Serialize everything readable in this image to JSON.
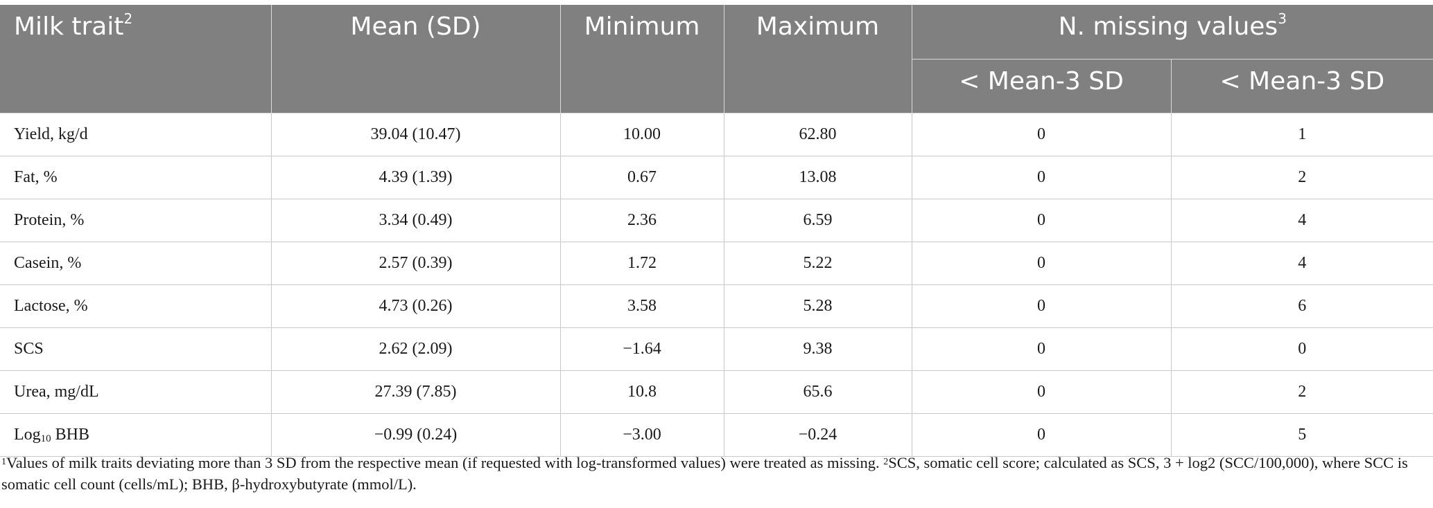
{
  "table": {
    "header": {
      "col1": "Milk trait",
      "col1_sup": "2",
      "col2": "Mean (SD)",
      "col3": "Minimum",
      "col4": "Maximum",
      "col5": "N. missing values",
      "col5_sup": "3",
      "sub1": "< Mean-3 SD",
      "sub2": "< Mean-3 SD"
    },
    "rows": [
      {
        "trait": "Yield, kg/d",
        "mean_sd": "39.04 (10.47)",
        "min": "10.00",
        "max": "62.80",
        "missing_low": "0",
        "missing_high": "1"
      },
      {
        "trait": "Fat, %",
        "mean_sd": "4.39 (1.39)",
        "min": "0.67",
        "max": "13.08",
        "missing_low": "0",
        "missing_high": "2"
      },
      {
        "trait": "Protein, %",
        "mean_sd": "3.34 (0.49)",
        "min": "2.36",
        "max": "6.59",
        "missing_low": "0",
        "missing_high": "4"
      },
      {
        "trait": "Casein, %",
        "mean_sd": "2.57 (0.39)",
        "min": "1.72",
        "max": "5.22",
        "missing_low": "0",
        "missing_high": "4"
      },
      {
        "trait": "Lactose, %",
        "mean_sd": "4.73 (0.26)",
        "min": "3.58",
        "max": "5.28",
        "missing_low": "0",
        "missing_high": "6"
      },
      {
        "trait": "SCS",
        "mean_sd": "2.62 (2.09)",
        "min": "−1.64",
        "max": "9.38",
        "missing_low": "0",
        "missing_high": "0"
      },
      {
        "trait": "Urea, mg/dL",
        "mean_sd": "27.39 (7.85)",
        "min": "10.8",
        "max": "65.6",
        "missing_low": "0",
        "missing_high": "2"
      },
      {
        "trait_prefix": "Log",
        "trait_sub": "10",
        "trait_suffix": " BHB",
        "mean_sd": "−0.99 (0.24)",
        "min": "−3.00",
        "max": "−0.24",
        "missing_low": "0",
        "missing_high": "5"
      }
    ]
  },
  "footnote": {
    "note1_sup": "1",
    "note1": "Values of milk traits deviating more than 3 SD from the respective mean (if requested with log-transformed values) were treated as missing. ",
    "note2_sup": "2",
    "note2": "SCS, somatic cell score; calculated as SCS, 3 + log2 (SCC/100,000), where SCC is somatic cell count (cells/mL); BHB, β-hydroxybutyrate (mmol/L)."
  }
}
